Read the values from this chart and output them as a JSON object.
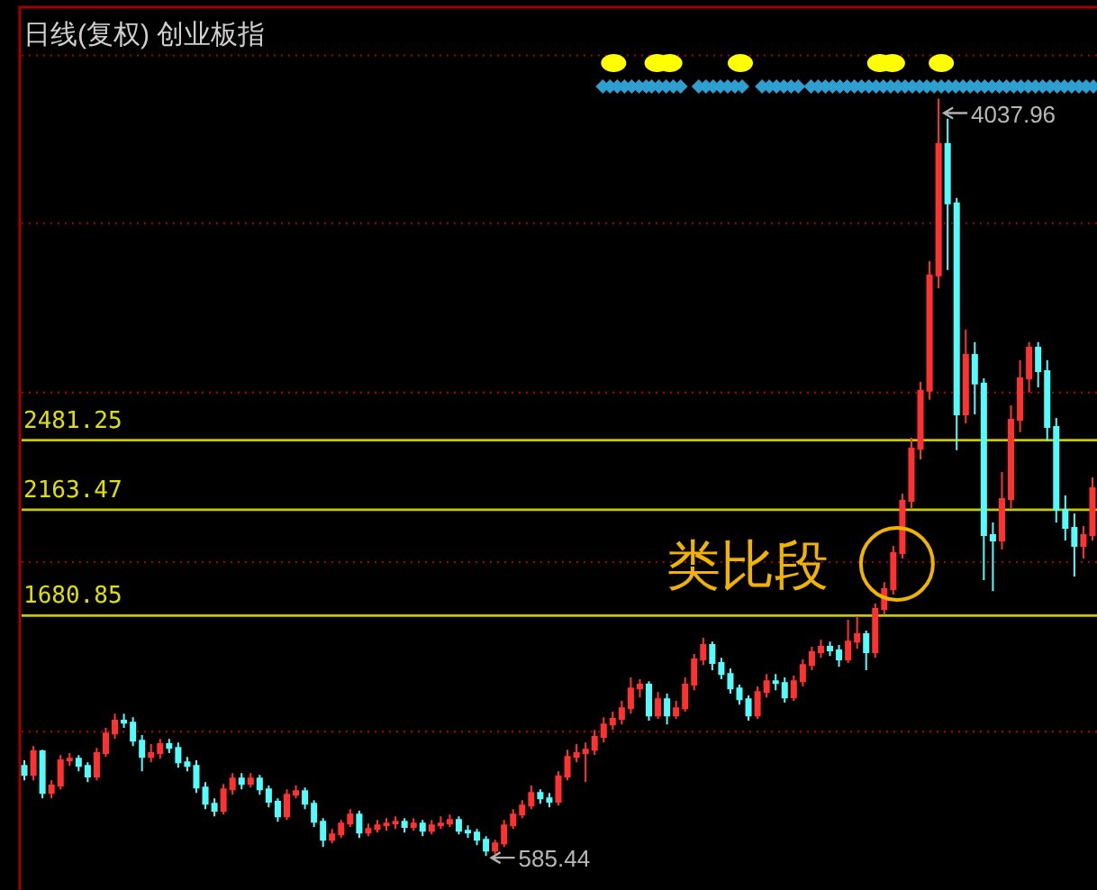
{
  "chart_data": {
    "type": "candlestick",
    "title": "日线(复权) 创业板指",
    "categories": [
      null,
      null,
      null,
      null,
      null,
      null,
      null,
      null,
      null,
      null,
      null,
      null,
      null,
      null,
      null,
      null,
      null,
      null,
      null,
      null,
      null,
      null,
      null,
      null,
      null,
      null,
      null,
      null,
      null,
      null,
      null,
      null,
      null,
      null,
      null,
      null,
      null,
      null,
      null,
      null,
      null,
      null,
      null,
      null,
      null,
      null,
      null,
      null,
      null,
      null,
      null,
      null,
      null,
      null,
      null,
      null,
      null,
      null,
      null,
      null,
      null,
      null,
      null,
      null,
      null,
      null,
      null,
      null,
      null,
      null,
      null,
      null,
      null,
      null,
      null,
      null,
      null,
      null,
      null,
      null,
      null,
      null,
      null,
      null,
      null,
      null,
      null,
      null,
      null,
      null,
      null,
      null,
      null,
      null,
      null,
      null,
      null,
      null,
      null,
      null,
      null,
      null,
      null,
      null,
      null,
      null,
      null,
      null,
      null,
      null,
      null,
      null,
      null,
      null,
      null,
      null,
      null,
      null,
      null
    ],
    "ohlc": [
      [
        996,
        1021,
        930,
        955
      ],
      [
        955,
        1086,
        930,
        1062
      ],
      [
        1062,
        1070,
        848,
        873
      ],
      [
        873,
        930,
        848,
        906
      ],
      [
        906,
        1045,
        889,
        1021
      ],
      [
        1021,
        1054,
        996,
        1029
      ],
      [
        1029,
        1045,
        971,
        996
      ],
      [
        996,
        1012,
        922,
        947
      ],
      [
        947,
        1078,
        930,
        1054
      ],
      [
        1054,
        1169,
        1037,
        1144
      ],
      [
        1144,
        1234,
        1119,
        1202
      ],
      [
        1202,
        1234,
        1169,
        1193
      ],
      [
        1193,
        1218,
        1086,
        1111
      ],
      [
        1111,
        1136,
        971,
        1037
      ],
      [
        1037,
        1095,
        1012,
        1054
      ],
      [
        1054,
        1119,
        1029,
        1095
      ],
      [
        1095,
        1119,
        1054,
        1078
      ],
      [
        1078,
        1103,
        988,
        1012
      ],
      [
        1012,
        1037,
        971,
        996
      ],
      [
        996,
        1021,
        873,
        897
      ],
      [
        897,
        922,
        799,
        823
      ],
      [
        823,
        848,
        766,
        791
      ],
      [
        791,
        914,
        774,
        889
      ],
      [
        889,
        963,
        864,
        938
      ],
      [
        938,
        963,
        889,
        914
      ],
      [
        914,
        963,
        897,
        938
      ],
      [
        938,
        955,
        864,
        889
      ],
      [
        889,
        906,
        807,
        832
      ],
      [
        832,
        848,
        741,
        766
      ],
      [
        766,
        889,
        749,
        864
      ],
      [
        864,
        906,
        848,
        881
      ],
      [
        881,
        897,
        799,
        823
      ],
      [
        823,
        840,
        717,
        741
      ],
      [
        741,
        758,
        626,
        659
      ],
      [
        659,
        708,
        643,
        684
      ],
      [
        684,
        749,
        667,
        733
      ],
      [
        733,
        799,
        717,
        774
      ],
      [
        774,
        791,
        667,
        692
      ],
      [
        692,
        733,
        675,
        708
      ],
      [
        708,
        749,
        692,
        725
      ],
      [
        725,
        758,
        700,
        733
      ],
      [
        733,
        766,
        708,
        741
      ],
      [
        741,
        758,
        692,
        717
      ],
      [
        717,
        758,
        700,
        733
      ],
      [
        733,
        749,
        675,
        700
      ],
      [
        700,
        749,
        684,
        725
      ],
      [
        725,
        766,
        708,
        733
      ],
      [
        733,
        774,
        717,
        749
      ],
      [
        749,
        766,
        684,
        700
      ],
      [
        700,
        725,
        667,
        692
      ],
      [
        692,
        708,
        634,
        659
      ],
      [
        659,
        675,
        585.44,
        610
      ],
      [
        610,
        659,
        593,
        643
      ],
      [
        643,
        749,
        626,
        725
      ],
      [
        725,
        799,
        708,
        774
      ],
      [
        774,
        840,
        758,
        815
      ],
      [
        815,
        906,
        799,
        873
      ],
      [
        873,
        889,
        823,
        848
      ],
      [
        848,
        873,
        807,
        832
      ],
      [
        832,
        971,
        815,
        947
      ],
      [
        947,
        1070,
        930,
        1037
      ],
      [
        1037,
        1095,
        1012,
        1054
      ],
      [
        1054,
        1103,
        922,
        1070
      ],
      [
        1070,
        1160,
        1045,
        1128
      ],
      [
        1128,
        1218,
        1103,
        1185
      ],
      [
        1185,
        1243,
        1160,
        1210
      ],
      [
        1210,
        1292,
        1185,
        1259
      ],
      [
        1259,
        1399,
        1234,
        1349
      ],
      [
        1349,
        1391,
        1308,
        1366
      ],
      [
        1366,
        1382,
        1202,
        1226
      ],
      [
        1226,
        1333,
        1210,
        1300
      ],
      [
        1300,
        1325,
        1185,
        1226
      ],
      [
        1226,
        1292,
        1210,
        1259
      ],
      [
        1259,
        1399,
        1243,
        1366
      ],
      [
        1366,
        1506,
        1341,
        1481
      ],
      [
        1481,
        1580,
        1456,
        1547
      ],
      [
        1547,
        1563,
        1432,
        1465
      ],
      [
        1465,
        1489,
        1391,
        1415
      ],
      [
        1415,
        1440,
        1325,
        1349
      ],
      [
        1349,
        1366,
        1275,
        1300
      ],
      [
        1300,
        1317,
        1202,
        1226
      ],
      [
        1226,
        1358,
        1210,
        1333
      ],
      [
        1333,
        1415,
        1308,
        1382
      ],
      [
        1382,
        1415,
        1341,
        1374
      ],
      [
        1374,
        1399,
        1284,
        1308
      ],
      [
        1308,
        1407,
        1292,
        1382
      ],
      [
        1382,
        1481,
        1358,
        1456
      ],
      [
        1456,
        1539,
        1432,
        1514
      ],
      [
        1514,
        1571,
        1489,
        1539
      ],
      [
        1539,
        1563,
        1497,
        1522
      ],
      [
        1522,
        1547,
        1448,
        1481
      ],
      [
        1481,
        1662,
        1465,
        1563
      ],
      [
        1563,
        1678,
        1530,
        1596
      ],
      [
        1596,
        1613,
        1432,
        1514
      ],
      [
        1514,
        1736,
        1489,
        1711
      ],
      [
        1711,
        1834,
        1686,
        1802
      ],
      [
        1802,
        1999,
        1777,
        1966
      ],
      [
        1966,
        2237,
        1941,
        2204
      ],
      [
        2204,
        2492,
        2171,
        2443
      ],
      [
        2443,
        2747,
        2393,
        2706
      ],
      [
        2706,
        3298,
        2665,
        3232
      ],
      [
        3232,
        4037.96,
        3174,
        3832
      ],
      [
        3832,
        3947,
        3257,
        3561
      ],
      [
        3561,
        3585,
        2435,
        2599
      ],
      [
        2599,
        2985,
        2558,
        2870
      ],
      [
        2870,
        2928,
        2599,
        2739
      ],
      [
        2739,
        2763,
        1843,
        2048
      ],
      [
        2048,
        2106,
        1793,
        2024
      ],
      [
        2024,
        2336,
        1982,
        2213
      ],
      [
        2213,
        2640,
        2171,
        2574
      ],
      [
        2574,
        2846,
        2517,
        2763
      ],
      [
        2763,
        2928,
        2698,
        2903
      ],
      [
        2903,
        2928,
        2722,
        2796
      ],
      [
        2796,
        2846,
        2476,
        2541
      ],
      [
        2541,
        2582,
        2106,
        2163
      ],
      [
        2163,
        2229,
        2024,
        2081
      ],
      [
        2081,
        2147,
        1859,
        1999
      ],
      [
        1999,
        2089,
        1941,
        2048
      ],
      [
        2048,
        2311,
        2024,
        2262
      ]
    ],
    "colors": [
      "#54fcfc",
      "#ff3232",
      "#54fcfc",
      "#ff3232",
      "#ff3232",
      "#ff3232",
      "#54fcfc",
      "#54fcfc",
      "#ff3232",
      "#ff3232",
      "#ff3232",
      "#54fcfc",
      "#54fcfc",
      "#54fcfc",
      "#ff3232",
      "#ff3232",
      "#54fcfc",
      "#54fcfc",
      "#54fcfc",
      "#54fcfc",
      "#54fcfc",
      "#54fcfc",
      "#ff3232",
      "#ff3232",
      "#54fcfc",
      "#ff3232",
      "#54fcfc",
      "#54fcfc",
      "#54fcfc",
      "#ff3232",
      "#ff3232",
      "#54fcfc",
      "#54fcfc",
      "#54fcfc",
      "#ff3232",
      "#ff3232",
      "#ff3232",
      "#54fcfc",
      "#ff3232",
      "#ff3232",
      "#ff3232",
      "#ff3232",
      "#54fcfc",
      "#ff3232",
      "#54fcfc",
      "#ff3232",
      "#ff3232",
      "#ff3232",
      "#54fcfc",
      "#54fcfc",
      "#54fcfc",
      "#54fcfc",
      "#ff3232",
      "#ff3232",
      "#ff3232",
      "#ff3232",
      "#ff3232",
      "#54fcfc",
      "#54fcfc",
      "#ff3232",
      "#ff3232",
      "#ff3232",
      "#ff3232",
      "#ff3232",
      "#ff3232",
      "#ff3232",
      "#ff3232",
      "#ff3232",
      "#ff3232",
      "#54fcfc",
      "#ff3232",
      "#54fcfc",
      "#ff3232",
      "#ff3232",
      "#ff3232",
      "#ff3232",
      "#54fcfc",
      "#54fcfc",
      "#54fcfc",
      "#54fcfc",
      "#54fcfc",
      "#ff3232",
      "#ff3232",
      "#54fcfc",
      "#54fcfc",
      "#ff3232",
      "#ff3232",
      "#ff3232",
      "#ff3232",
      "#54fcfc",
      "#54fcfc",
      "#ff3232",
      "#ff3232",
      "#54fcfc",
      "#ff3232",
      "#ff3232",
      "#ff3232",
      "#ff3232",
      "#ff3232",
      "#ff3232",
      "#ff3232",
      "#ff3232",
      "#54fcfc",
      "#54fcfc",
      "#ff3232",
      "#54fcfc",
      "#54fcfc",
      "#54fcfc",
      "#ff3232",
      "#ff3232",
      "#ff3232",
      "#ff3232",
      "#54fcfc",
      "#54fcfc",
      "#54fcfc",
      "#54fcfc",
      "#54fcfc",
      "#ff3232",
      "#ff3232"
    ],
    "ylim": [
      430,
      4455
    ],
    "yticks": [
      1680.85,
      2163.47,
      2481.25
    ],
    "ref_lines": [
      {
        "axis": "y",
        "value": 2481.25,
        "color": "#c8c800"
      },
      {
        "axis": "y",
        "value": 2163.47,
        "color": "#c8c800"
      },
      {
        "axis": "y",
        "value": 1680.85,
        "color": "#c8c800"
      },
      {
        "axis": "y",
        "value": 1152,
        "color": "#b00000",
        "line_style": "dotted"
      },
      {
        "axis": "y",
        "value": 1925,
        "color": "#b00000",
        "line_style": "dotted"
      },
      {
        "axis": "y",
        "value": 2698,
        "color": "#b00000",
        "line_style": "dotted"
      },
      {
        "axis": "y",
        "value": 3470,
        "color": "#b00000",
        "line_style": "dotted"
      },
      {
        "axis": "y",
        "value": 4235,
        "color": "#b00000",
        "line_style": "dotted"
      }
    ],
    "annotations": [
      "585.44",
      "4037.96",
      {
        "text": "类比段",
        "y": 1917
      }
    ]
  }
}
